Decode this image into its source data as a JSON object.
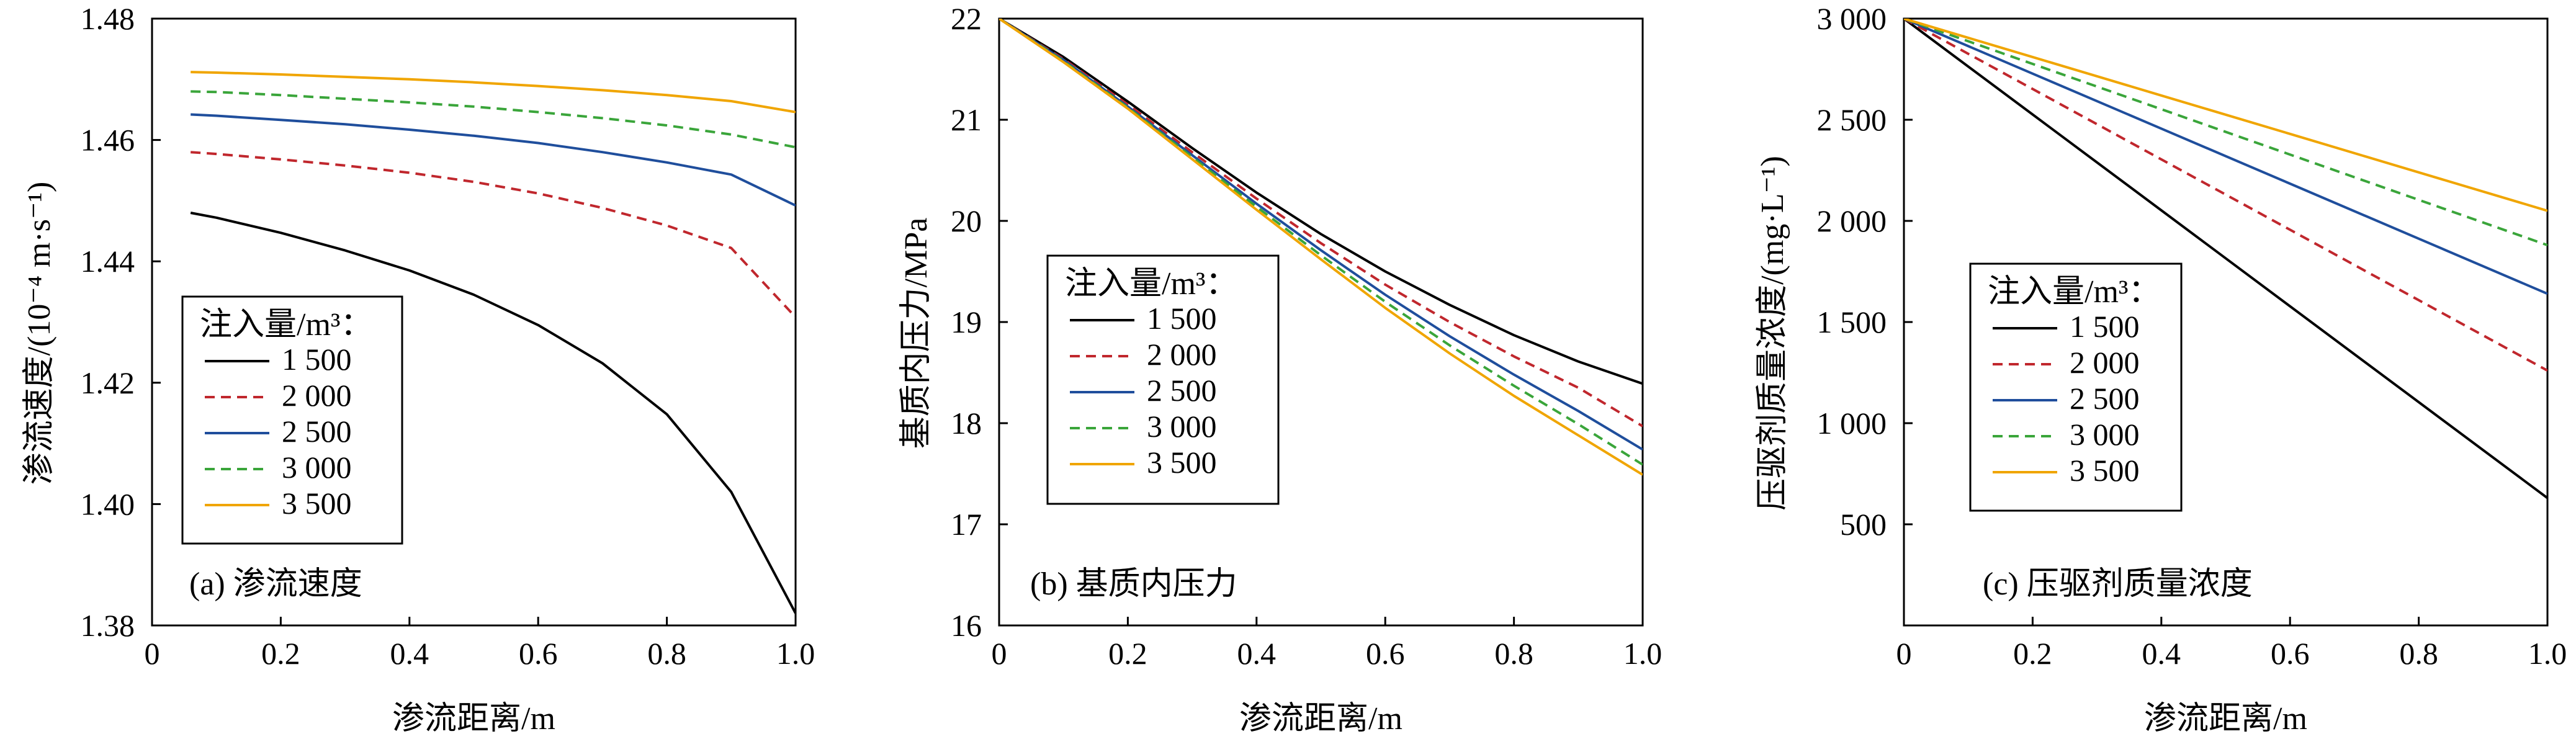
{
  "figure": {
    "legend_title": "注入量/m³："
  },
  "colors": {
    "1500": "#000000",
    "2000": "#c0272d",
    "2500": "#1f4e9c",
    "3000": "#3aa53a",
    "3500": "#f0a500"
  },
  "chart_data": [
    {
      "type": "line",
      "title": "(a) 渗流速度",
      "xlabel": "渗流距离/m",
      "ylabel": "渗流速度/(10⁻⁴ m·s⁻¹)",
      "xlim": [
        0,
        1.0
      ],
      "ylim": [
        1.38,
        1.48
      ],
      "xticks": [
        0,
        0.2,
        0.4,
        0.6,
        0.8,
        1.0
      ],
      "xtick_labels": [
        "0",
        "0.2",
        "0.4",
        "0.6",
        "0.8",
        "1.0"
      ],
      "yticks": [
        1.38,
        1.4,
        1.42,
        1.44,
        1.46,
        1.48
      ],
      "ytick_labels": [
        "1.38",
        "1.40",
        "1.42",
        "1.44",
        "1.46",
        "1.48"
      ],
      "legend": {
        "title": "注入量/m³：",
        "position": "bottom-left"
      },
      "x": [
        0.06,
        0.1,
        0.2,
        0.3,
        0.4,
        0.5,
        0.6,
        0.7,
        0.8,
        0.9,
        1.0
      ],
      "series": [
        {
          "name": "1 500",
          "key": "1500",
          "dash": "solid",
          "values": [
            1.448,
            1.4472,
            1.4447,
            1.4418,
            1.4385,
            1.4345,
            1.4295,
            1.4232,
            1.4148,
            1.402,
            1.382
          ]
        },
        {
          "name": "2 000",
          "key": "2000",
          "dash": "dashed",
          "values": [
            1.458,
            1.4577,
            1.4568,
            1.4558,
            1.4546,
            1.4531,
            1.4512,
            1.4488,
            1.4459,
            1.4422,
            1.4308
          ]
        },
        {
          "name": "2 500",
          "key": "2500",
          "dash": "solid",
          "values": [
            1.4642,
            1.464,
            1.4633,
            1.4626,
            1.4617,
            1.4607,
            1.4595,
            1.458,
            1.4563,
            1.4543,
            1.4492
          ]
        },
        {
          "name": "3 000",
          "key": "3000",
          "dash": "dashed",
          "values": [
            1.468,
            1.4679,
            1.4674,
            1.4668,
            1.4662,
            1.4655,
            1.4646,
            1.4636,
            1.4624,
            1.4609,
            1.4588
          ]
        },
        {
          "name": "3 500",
          "key": "3500",
          "dash": "solid",
          "values": [
            1.4712,
            1.4711,
            1.4708,
            1.4704,
            1.47,
            1.4695,
            1.4689,
            1.4682,
            1.4674,
            1.4664,
            1.4646
          ]
        }
      ]
    },
    {
      "type": "line",
      "title": "(b) 基质内压力",
      "xlabel": "渗流距离/m",
      "ylabel": "基质内压力/MPa",
      "xlim": [
        0,
        1.0
      ],
      "ylim": [
        16,
        22
      ],
      "xticks": [
        0,
        0.2,
        0.4,
        0.6,
        0.8,
        1.0
      ],
      "xtick_labels": [
        "0",
        "0.2",
        "0.4",
        "0.6",
        "0.8",
        "1.0"
      ],
      "yticks": [
        16,
        17,
        18,
        19,
        20,
        21,
        22
      ],
      "ytick_labels": [
        "16",
        "17",
        "18",
        "19",
        "20",
        "21",
        "22"
      ],
      "legend": {
        "title": "注入量/m³：",
        "position": "left"
      },
      "x": [
        0,
        0.1,
        0.2,
        0.3,
        0.4,
        0.5,
        0.6,
        0.7,
        0.8,
        0.9,
        1.0
      ],
      "series": [
        {
          "name": "1 500",
          "key": "1500",
          "dash": "solid",
          "values": [
            22.0,
            21.62,
            21.18,
            20.72,
            20.28,
            19.87,
            19.5,
            19.17,
            18.87,
            18.61,
            18.39
          ]
        },
        {
          "name": "2 000",
          "key": "2000",
          "dash": "dashed",
          "values": [
            22.0,
            21.6,
            21.15,
            20.68,
            20.22,
            19.78,
            19.37,
            19.0,
            18.66,
            18.35,
            17.97
          ]
        },
        {
          "name": "2 500",
          "key": "2500",
          "dash": "solid",
          "values": [
            22.0,
            21.59,
            21.13,
            20.65,
            20.17,
            19.71,
            19.27,
            18.86,
            18.48,
            18.12,
            17.74
          ]
        },
        {
          "name": "3 000",
          "key": "3000",
          "dash": "dashed",
          "values": [
            22.0,
            21.58,
            21.12,
            20.63,
            20.14,
            19.66,
            19.2,
            18.77,
            18.37,
            17.99,
            17.59
          ]
        },
        {
          "name": "3 500",
          "key": "3500",
          "dash": "solid",
          "values": [
            22.0,
            21.57,
            21.11,
            20.61,
            20.11,
            19.62,
            19.14,
            18.69,
            18.27,
            17.88,
            17.49
          ]
        }
      ]
    },
    {
      "type": "line",
      "title": "(c) 压驱剂质量浓度",
      "xlabel": "渗流距离/m",
      "ylabel": "压驱剂质量浓度/(mg·L⁻¹)",
      "xlim": [
        0,
        1.0
      ],
      "ylim": [
        0,
        3000
      ],
      "xticks": [
        0,
        0.2,
        0.4,
        0.6,
        0.8,
        1.0
      ],
      "xtick_labels": [
        "0",
        "0.2",
        "0.4",
        "0.6",
        "0.8",
        "1.0"
      ],
      "yticks": [
        500,
        1000,
        1500,
        2000,
        2500,
        3000
      ],
      "ytick_labels": [
        "500",
        "1 000",
        "1 500",
        "2 000",
        "2 500",
        "3 000"
      ],
      "legend": {
        "title": "注入量/m³：",
        "position": "left"
      },
      "x": [
        0,
        0.2,
        0.4,
        0.6,
        0.8,
        1.0
      ],
      "series": [
        {
          "name": "1 500",
          "key": "1500",
          "dash": "solid",
          "values": [
            3000,
            2526,
            2052,
            1578,
            1104,
            630
          ]
        },
        {
          "name": "2 000",
          "key": "2000",
          "dash": "dashed",
          "values": [
            3000,
            2652,
            2304,
            1956,
            1608,
            1260
          ]
        },
        {
          "name": "2 500",
          "key": "2500",
          "dash": "solid",
          "values": [
            3000,
            2728,
            2456,
            2184,
            1912,
            1640
          ]
        },
        {
          "name": "3 000",
          "key": "3000",
          "dash": "dashed",
          "values": [
            3000,
            2776,
            2552,
            2328,
            2104,
            1880
          ]
        },
        {
          "name": "3 500",
          "key": "3500",
          "dash": "solid",
          "values": [
            3000,
            2810,
            2620,
            2430,
            2240,
            2050
          ]
        }
      ]
    }
  ]
}
